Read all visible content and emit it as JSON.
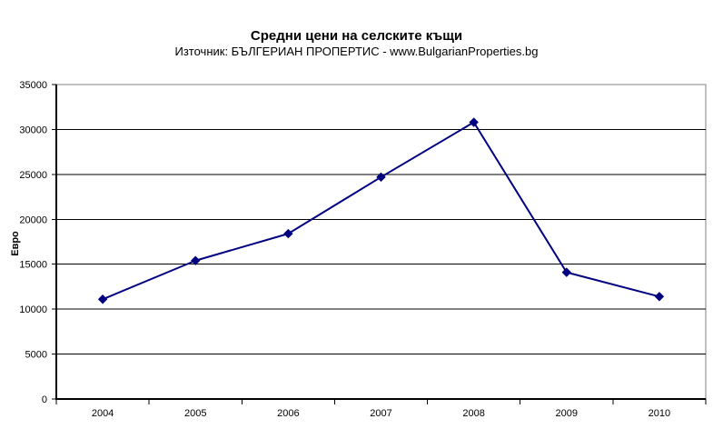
{
  "chart_data": {
    "type": "line",
    "title": "Средни цени на селските къщи",
    "subtitle": "Източник: БЪЛГЕРИАН ПРОПЕРТИС - www.BulgarianProperties.bg",
    "ylabel": "Евро",
    "xlabel": "",
    "categories": [
      "2004",
      "2005",
      "2006",
      "2007",
      "2008",
      "2009",
      "2010"
    ],
    "series": [
      {
        "name": "Средни цени на селските къщи (Евро)",
        "values": [
          11100,
          15400,
          18400,
          24700,
          30800,
          14100,
          11400
        ]
      }
    ],
    "ylim": [
      0,
      35000
    ],
    "ytick_step": 5000,
    "yticks": [
      0,
      5000,
      10000,
      15000,
      20000,
      25000,
      30000,
      35000
    ],
    "grid": true,
    "legend": false,
    "marker": "diamond",
    "colors": {
      "line": "#000080",
      "marker": "#000080",
      "gridline": "#000000",
      "axis": "#000000",
      "plot_border": "#808080",
      "background": "#FFFFFF",
      "text": "#000000"
    }
  }
}
